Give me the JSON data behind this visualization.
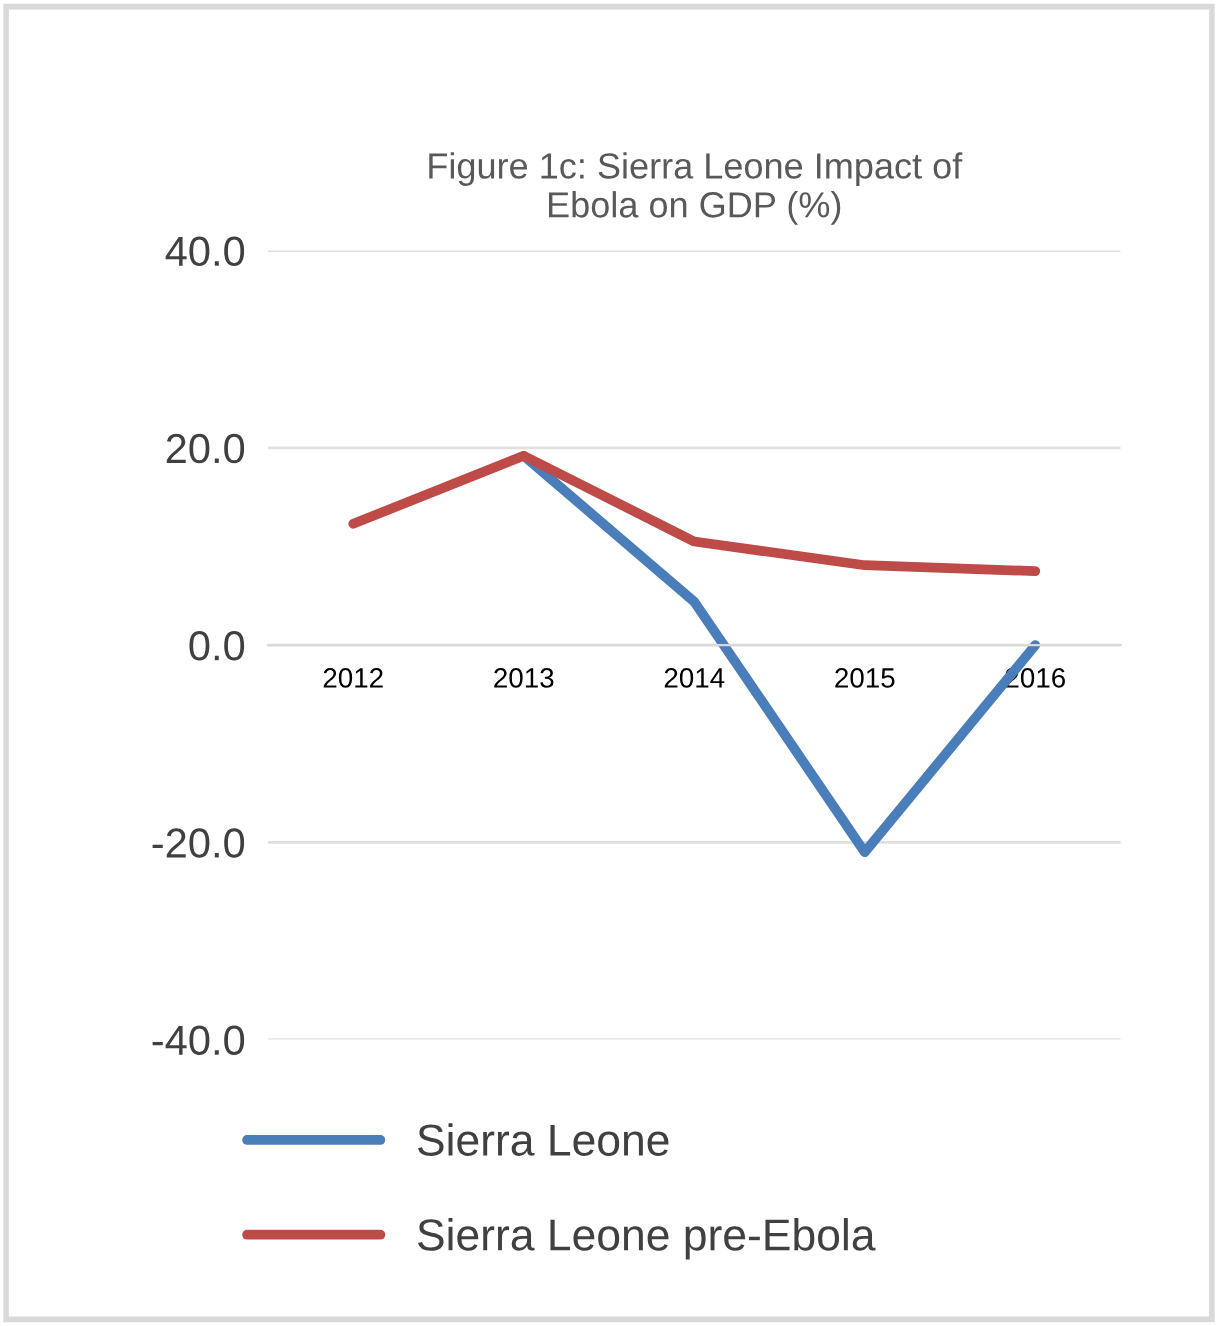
{
  "chart_data": {
    "type": "line",
    "title": "Figure 1c: Sierra Leone Impact of\nEbola on GDP (%)",
    "categories": [
      "2012",
      "2013",
      "2014",
      "2015",
      "2016"
    ],
    "series": [
      {
        "name": "Sierra Leone",
        "color": "#4a7ebb",
        "values": [
          null,
          19.2,
          4.4,
          -21.0,
          0.0
        ]
      },
      {
        "name": "Sierra Leone pre-Ebola",
        "color": "#be4b48",
        "values": [
          12.3,
          19.2,
          10.5,
          8.1,
          7.5
        ]
      }
    ],
    "ylim": [
      -40,
      40
    ],
    "yticks": [
      {
        "value": -40,
        "label": "-40.0"
      },
      {
        "value": -20,
        "label": "-20.0"
      },
      {
        "value": 0,
        "label": "0.0"
      },
      {
        "value": 20,
        "label": "20.0"
      },
      {
        "value": 40,
        "label": "40.0"
      }
    ],
    "grid": "y",
    "legend": "bottom",
    "marker": "none",
    "line_style": "solid"
  }
}
